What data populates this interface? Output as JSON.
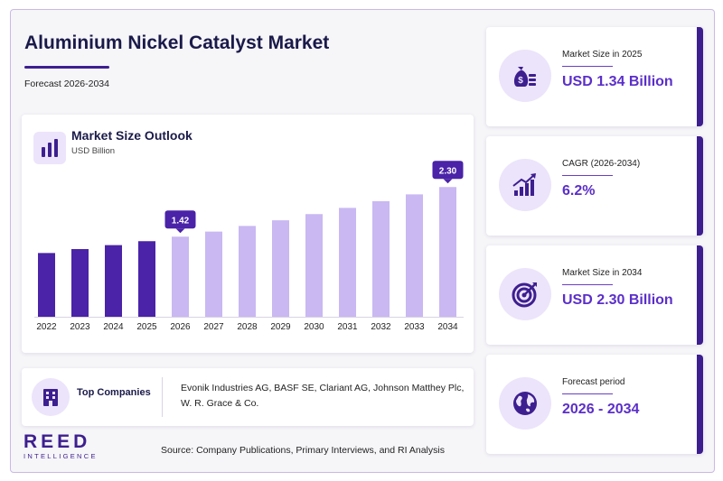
{
  "header": {
    "title": "Aluminium Nickel Catalyst Market",
    "subtitle": "Forecast 2026-2034"
  },
  "chart_data": {
    "type": "bar",
    "title": "Market Size Outlook",
    "ylabel": "USD Billion",
    "categories": [
      "2022",
      "2023",
      "2024",
      "2025",
      "2026",
      "2027",
      "2028",
      "2029",
      "2030",
      "2031",
      "2032",
      "2033",
      "2034"
    ],
    "values": [
      1.13,
      1.2,
      1.27,
      1.34,
      1.42,
      1.51,
      1.61,
      1.71,
      1.82,
      1.93,
      2.05,
      2.17,
      2.3
    ],
    "period": [
      "historical",
      "historical",
      "historical",
      "historical",
      "forecast",
      "forecast",
      "forecast",
      "forecast",
      "forecast",
      "forecast",
      "forecast",
      "forecast",
      "forecast"
    ],
    "annotations": [
      {
        "category": "2026",
        "label": "1.42"
      },
      {
        "category": "2034",
        "label": "2.30"
      }
    ],
    "colors": {
      "historical": "#4a23a8",
      "forecast": "#c9b8f2",
      "callout": "#4a23a8"
    },
    "ylim": [
      0,
      2.4
    ],
    "grid": false,
    "legend": "none"
  },
  "companies": {
    "label": "Top Companies",
    "text": "Evonik Industries AG, BASF SE, Clariant AG, Johnson Matthey Plc, W. R. Grace & Co."
  },
  "kpis": [
    {
      "label": "Market Size in 2025",
      "value": "USD 1.34 Billion",
      "icon": "money-bag-icon"
    },
    {
      "label": "CAGR (2026-2034)",
      "value": "6.2%",
      "icon": "growth-chart-icon"
    },
    {
      "label": "Market Size in 2034",
      "value": "USD 2.30 Billion",
      "icon": "target-icon"
    },
    {
      "label": "Forecast period",
      "value": "2026 - 2034",
      "icon": "globe-icon"
    }
  ],
  "brand": {
    "name": "REED",
    "tagline": "INTELLIGENCE",
    "color": "#3d1f8f"
  },
  "footer": {
    "source": "Source: Company Publications, Primary Interviews, and RI Analysis"
  }
}
